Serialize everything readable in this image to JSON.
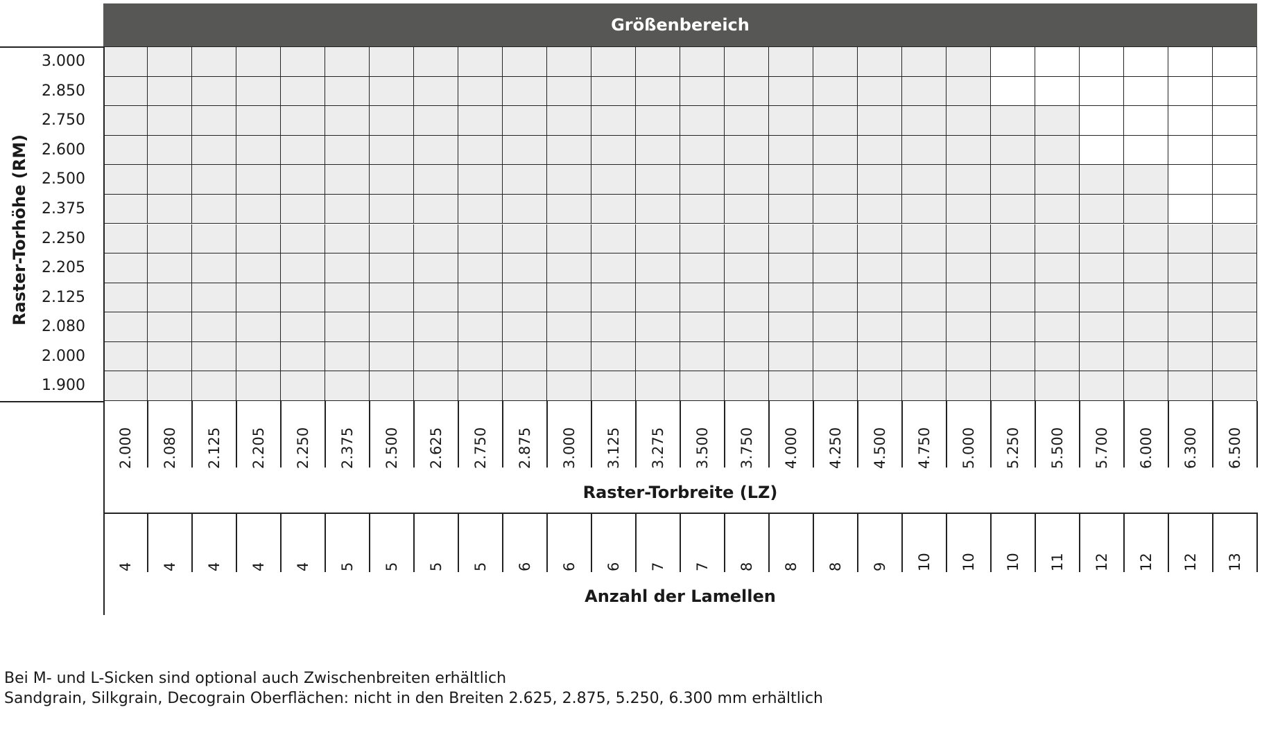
{
  "chart_data": {
    "type": "table",
    "title": "Größenbereich",
    "ylabel": "Raster-Torhöhe (RM)",
    "xlabel": "Raster-Torbreite (LZ)",
    "x2label": "Anzahl der Lamellen",
    "heights": [
      "3.000",
      "2.850",
      "2.750",
      "2.600",
      "2.500",
      "2.375",
      "2.250",
      "2.205",
      "2.125",
      "2.080",
      "2.000",
      "1.900"
    ],
    "widths": [
      "2.000",
      "2.080",
      "2.125",
      "2.205",
      "2.250",
      "2.375",
      "2.500",
      "2.625",
      "2.750",
      "2.875",
      "3.000",
      "3.125",
      "3.275",
      "3.500",
      "3.750",
      "4.000",
      "4.250",
      "4.500",
      "4.750",
      "5.000",
      "5.250",
      "5.500",
      "5.700",
      "6.000",
      "6.300",
      "6.500"
    ],
    "lamellen": [
      "4",
      "4",
      "4",
      "4",
      "4",
      "5",
      "5",
      "5",
      "5",
      "6",
      "6",
      "6",
      "7",
      "7",
      "8",
      "8",
      "8",
      "9",
      "10",
      "10",
      "10",
      "11",
      "12",
      "12",
      "12",
      "13"
    ],
    "max_width_per_height": [
      "5.000",
      "5.000",
      "5.500",
      "5.500",
      "6.000",
      "6.000",
      "6.500",
      "6.500",
      "6.500",
      "6.500",
      "6.500",
      "6.500"
    ],
    "colors": {
      "available": "#ededed",
      "unavailable": "#ffffff",
      "header": "#575756"
    }
  },
  "notes": [
    "Bei M- und L-Sicken sind optional auch Zwischenbreiten erhältlich",
    "Sandgrain, Silkgrain, Decograin Oberflächen: nicht in den Breiten 2.625, 2.875, 5.250, 6.300 mm erhältlich"
  ]
}
